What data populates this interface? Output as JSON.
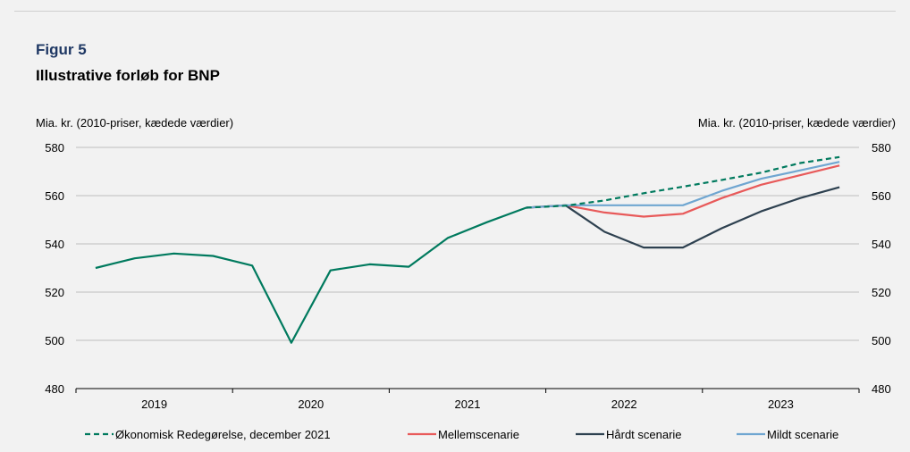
{
  "figure": {
    "label": "Figur 5",
    "title": "Illustrative forløb for BNP",
    "unit_left": "Mia. kr. (2010-priser, kædede værdier)",
    "unit_right": "Mia. kr. (2010-priser, kædede værdier)"
  },
  "chart_data": {
    "type": "line",
    "title": "Illustrative forløb for BNP",
    "ylabel": "Mia. kr. (2010-priser, kædede værdier)",
    "ylim": [
      480,
      580
    ],
    "yticks": [
      480,
      500,
      520,
      540,
      560,
      580
    ],
    "ytick_labels": [
      "480",
      "500",
      "520",
      "540",
      "560",
      "580"
    ],
    "grid": true,
    "legend_position": "bottom",
    "year_labels": [
      "2019",
      "2020",
      "2021",
      "2022",
      "2023"
    ],
    "quarters": [
      "2019K1",
      "2019K2",
      "2019K3",
      "2019K4",
      "2020K1",
      "2020K2",
      "2020K3",
      "2020K4",
      "2021K1",
      "2021K2",
      "2021K3",
      "2021K4",
      "2022K1",
      "2022K2",
      "2022K3",
      "2022K4",
      "2023K1",
      "2023K2",
      "2023K3",
      "2023K4"
    ],
    "series": [
      {
        "name": "Økonomisk Redegørelse, december 2021",
        "color": "#007a5e",
        "style": "historic-solid-then-dashed",
        "values": [
          530.0,
          534.0,
          536.0,
          535.0,
          531.0,
          499.0,
          529.0,
          531.5,
          530.5,
          542.5,
          549.0,
          555.0,
          555.8,
          558.0,
          561.0,
          563.7,
          566.5,
          569.5,
          573.5,
          576.0
        ]
      },
      {
        "name": "Mellemscenarie",
        "color": "#e85a5a",
        "style": "solid",
        "values": [
          null,
          null,
          null,
          null,
          null,
          null,
          null,
          null,
          null,
          null,
          null,
          555.0,
          556.0,
          553.0,
          551.3,
          552.5,
          559.0,
          564.5,
          568.5,
          572.5
        ]
      },
      {
        "name": "Hårdt scenarie",
        "color": "#2e4150",
        "style": "solid",
        "values": [
          null,
          null,
          null,
          null,
          null,
          null,
          null,
          null,
          null,
          null,
          null,
          555.0,
          556.0,
          545.0,
          538.5,
          538.5,
          546.5,
          553.5,
          559.0,
          563.5
        ]
      },
      {
        "name": "Mildt scenarie",
        "color": "#6fa6d1",
        "style": "solid",
        "values": [
          null,
          null,
          null,
          null,
          null,
          null,
          null,
          null,
          null,
          null,
          null,
          555.0,
          556.0,
          556.0,
          556.0,
          556.0,
          562.0,
          567.0,
          570.5,
          574.0
        ]
      }
    ]
  }
}
